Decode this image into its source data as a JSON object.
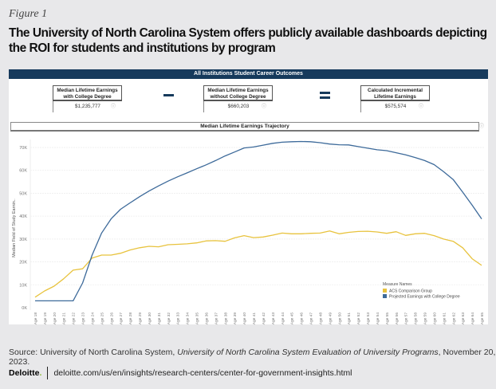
{
  "figure_label": "Figure 1",
  "figure_title": "The University of North Carolina System offers publicly available dashboards depicting the ROI for students and institutions by program",
  "dashboard": {
    "header": "All Institutions Student Career Outcomes",
    "kpis": [
      {
        "title": "Median Lifetime Earnings with College Degree",
        "value": "$1,235,777",
        "info_icon": "info-icon"
      },
      {
        "title": "Median Lifetime Earnings without College Degree",
        "value": "$660,203",
        "info_icon": "info-icon"
      },
      {
        "title": "Calculated Incremental Lifetime Earnings",
        "value": "$575,574",
        "info_icon": "info-icon"
      }
    ],
    "operators": [
      "minus",
      "equals"
    ],
    "chart_header": "Median Lifetime Earnings Trajectory",
    "info_glyph": "ⓘ",
    "colors": {
      "header_bg": "#163a5c",
      "acs": "#e8c33e",
      "projected": "#3d6a9a"
    }
  },
  "chart_data": {
    "type": "line",
    "title": "Median Lifetime Earnings Trajectory",
    "xlabel": "",
    "ylabel": "Median Field of Study Earnin..",
    "ylim": [
      0,
      70000
    ],
    "yticks": [
      "0K",
      "10K",
      "20K",
      "30K",
      "40K",
      "50K",
      "60K",
      "70K"
    ],
    "ytick_values": [
      0,
      10000,
      20000,
      30000,
      40000,
      50000,
      60000,
      70000
    ],
    "grid": true,
    "x": [
      "Age 18",
      "Age 19",
      "Age 20",
      "Age 21",
      "Age 22",
      "Age 23",
      "Age 24",
      "Age 25",
      "Age 26",
      "Age 27",
      "Age 28",
      "Age 29",
      "Age 30",
      "Age 31",
      "Age 32",
      "Age 33",
      "Age 34",
      "Age 35",
      "Age 36",
      "Age 37",
      "Age 38",
      "Age 39",
      "Age 40",
      "Age 41",
      "Age 42",
      "Age 43",
      "Age 44",
      "Age 45",
      "Age 46",
      "Age 47",
      "Age 48",
      "Age 49",
      "Age 50",
      "Age 51",
      "Age 52",
      "Age 53",
      "Age 54",
      "Age 55",
      "Age 56",
      "Age 57",
      "Age 58",
      "Age 59",
      "Age 60",
      "Age 61",
      "Age 62",
      "Age 63",
      "Age 64",
      "Age 65"
    ],
    "legend_title": "Measure Names",
    "legend_position": "bottom-right",
    "series": [
      {
        "name": "ACS Comparison Group",
        "color": "#e8c33e",
        "values": [
          4600,
          7300,
          9400,
          12600,
          16400,
          17000,
          21700,
          23000,
          23000,
          23800,
          25200,
          26200,
          26800,
          26600,
          27500,
          27700,
          27900,
          28300,
          29200,
          29300,
          29000,
          30500,
          31500,
          30600,
          30900,
          31700,
          32600,
          32300,
          32300,
          32500,
          32600,
          33500,
          32300,
          32900,
          33300,
          33400,
          33100,
          32500,
          33200,
          31600,
          32300,
          32500,
          31500,
          30000,
          29000,
          26200,
          21400,
          18500
        ]
      },
      {
        "name": "Projected Earnings with College Degree",
        "color": "#3d6a9a",
        "values": [
          3000,
          3000,
          3000,
          3000,
          3000,
          10800,
          23000,
          32600,
          38800,
          43000,
          45800,
          48500,
          51000,
          53200,
          55300,
          57200,
          58900,
          60700,
          62400,
          64300,
          66300,
          68000,
          69800,
          70200,
          71000,
          71800,
          72300,
          72500,
          72600,
          72500,
          72100,
          71500,
          71200,
          71100,
          70400,
          69700,
          69000,
          68600,
          67700,
          66800,
          65600,
          64300,
          62500,
          59400,
          56000,
          50500,
          44800,
          38800
        ]
      }
    ]
  },
  "source": {
    "prefix": "Source: University of North Carolina System, ",
    "title": "University of North Carolina System Evaluation of University Programs",
    "suffix": ", November 20, 2023."
  },
  "footer": {
    "logo": "Deloitte",
    "logo_dot": ".",
    "url": "deloitte.com/us/en/insights/research-centers/center-for-government-insights.html"
  }
}
